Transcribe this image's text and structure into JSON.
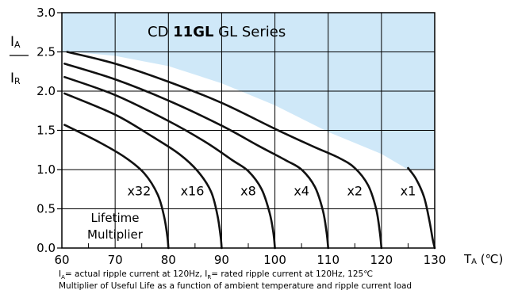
{
  "chart_data": {
    "type": "line",
    "title": {
      "prefix": "CD ",
      "bold": "11GL",
      "suffix": " GL Series"
    },
    "xlim": [
      60,
      130
    ],
    "ylim": [
      0.0,
      3.0
    ],
    "x_ticks": [
      60,
      70,
      80,
      90,
      100,
      110,
      120,
      130
    ],
    "y_ticks": [
      "0.0",
      "0.5",
      "1.0",
      "1.5",
      "2.0",
      "2.5",
      "3.0"
    ],
    "xlabel": {
      "main": "T",
      "sub": "A",
      "unit": " (℃)"
    },
    "ylabel": {
      "top_main": "I",
      "top_sub": "A",
      "bottom_main": "I",
      "bottom_sub": "R"
    },
    "grid": true,
    "shaded_region_color": "#cfe8f8",
    "line_color": "#111111",
    "shaded_boundary": [
      {
        "x": 62,
        "y": 2.5
      },
      {
        "x": 70,
        "y": 2.45
      },
      {
        "x": 80,
        "y": 2.32
      },
      {
        "x": 90,
        "y": 2.1
      },
      {
        "x": 100,
        "y": 1.82
      },
      {
        "x": 110,
        "y": 1.48
      },
      {
        "x": 120,
        "y": 1.2
      },
      {
        "x": 125,
        "y": 1.0
      }
    ],
    "series": [
      {
        "name": "x1",
        "label_x": 125,
        "label_y": 0.73,
        "points": [
          {
            "x": 125,
            "y": 1.02
          },
          {
            "x": 126.5,
            "y": 0.88
          },
          {
            "x": 128,
            "y": 0.65
          },
          {
            "x": 129,
            "y": 0.35
          },
          {
            "x": 129.6,
            "y": 0.12
          },
          {
            "x": 130,
            "y": 0.0
          }
        ]
      },
      {
        "name": "x2",
        "label_x": 115,
        "label_y": 0.73,
        "points": [
          {
            "x": 61,
            "y": 2.5
          },
          {
            "x": 70,
            "y": 2.35
          },
          {
            "x": 80,
            "y": 2.12
          },
          {
            "x": 90,
            "y": 1.85
          },
          {
            "x": 100,
            "y": 1.52
          },
          {
            "x": 107,
            "y": 1.3
          },
          {
            "x": 112,
            "y": 1.15
          },
          {
            "x": 115,
            "y": 1.02
          },
          {
            "x": 117.5,
            "y": 0.8
          },
          {
            "x": 119,
            "y": 0.5
          },
          {
            "x": 119.7,
            "y": 0.2
          },
          {
            "x": 120,
            "y": 0.0
          }
        ]
      },
      {
        "name": "x4",
        "label_x": 105,
        "label_y": 0.73,
        "points": [
          {
            "x": 60.5,
            "y": 2.35
          },
          {
            "x": 70,
            "y": 2.15
          },
          {
            "x": 80,
            "y": 1.88
          },
          {
            "x": 90,
            "y": 1.56
          },
          {
            "x": 97,
            "y": 1.3
          },
          {
            "x": 102,
            "y": 1.12
          },
          {
            "x": 105,
            "y": 1.0
          },
          {
            "x": 107.5,
            "y": 0.78
          },
          {
            "x": 109,
            "y": 0.48
          },
          {
            "x": 109.7,
            "y": 0.2
          },
          {
            "x": 110,
            "y": 0.0
          }
        ]
      },
      {
        "name": "x8",
        "label_x": 95,
        "label_y": 0.73,
        "points": [
          {
            "x": 60.5,
            "y": 2.18
          },
          {
            "x": 70,
            "y": 1.95
          },
          {
            "x": 80,
            "y": 1.62
          },
          {
            "x": 87,
            "y": 1.35
          },
          {
            "x": 92,
            "y": 1.12
          },
          {
            "x": 95,
            "y": 0.98
          },
          {
            "x": 97.5,
            "y": 0.75
          },
          {
            "x": 99,
            "y": 0.45
          },
          {
            "x": 99.7,
            "y": 0.2
          },
          {
            "x": 100,
            "y": 0.0
          }
        ]
      },
      {
        "name": "x16",
        "label_x": 84.5,
        "label_y": 0.73,
        "points": [
          {
            "x": 60.5,
            "y": 1.97
          },
          {
            "x": 70,
            "y": 1.7
          },
          {
            "x": 77,
            "y": 1.42
          },
          {
            "x": 82,
            "y": 1.2
          },
          {
            "x": 85.5,
            "y": 0.98
          },
          {
            "x": 88,
            "y": 0.72
          },
          {
            "x": 89.2,
            "y": 0.42
          },
          {
            "x": 89.8,
            "y": 0.15
          },
          {
            "x": 90,
            "y": 0.0
          }
        ]
      },
      {
        "name": "x32",
        "label_x": 74.5,
        "label_y": 0.73,
        "points": [
          {
            "x": 60.5,
            "y": 1.57
          },
          {
            "x": 67,
            "y": 1.35
          },
          {
            "x": 72,
            "y": 1.15
          },
          {
            "x": 75.5,
            "y": 0.95
          },
          {
            "x": 78,
            "y": 0.68
          },
          {
            "x": 79.2,
            "y": 0.4
          },
          {
            "x": 79.8,
            "y": 0.15
          },
          {
            "x": 80,
            "y": 0.0
          }
        ]
      }
    ],
    "annotation": [
      "Lifetime",
      "Multiplier"
    ]
  },
  "footnotes": {
    "line1": {
      "a": "I",
      "a_sub": "A",
      "b": "= actual ripple current at 120Hz, ",
      "c": "I",
      "c_sub": "R",
      "d": "= rated ripple current at 120Hz, 125℃"
    },
    "line2": "Multiplier of Useful Life as a function of ambient temperature and ripple current load"
  }
}
